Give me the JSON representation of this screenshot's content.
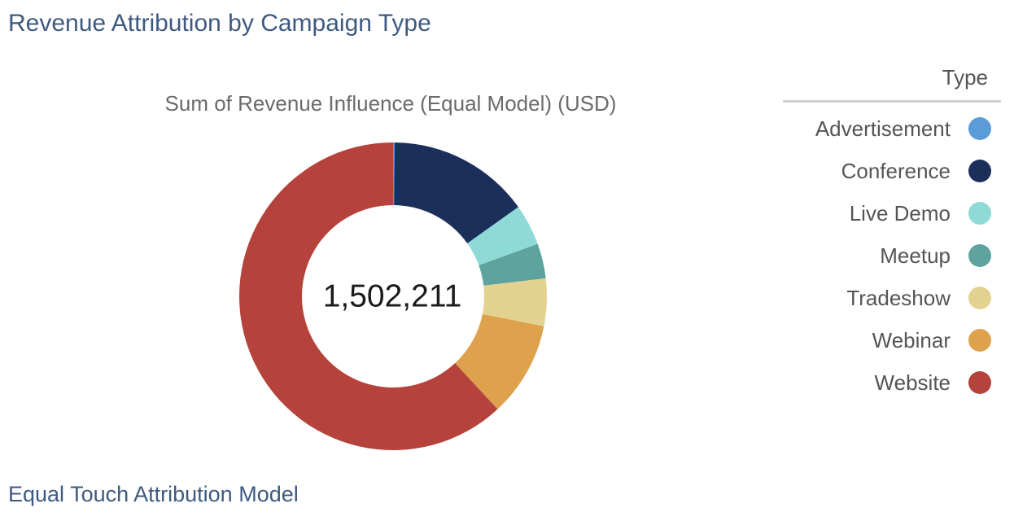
{
  "header": {
    "title": "Revenue Attribution by Campaign Type"
  },
  "footer": {
    "title": "Equal Touch Attribution Model"
  },
  "chart_data": {
    "type": "pie",
    "donut": true,
    "title": "Sum of Revenue Influence (Equal Model) (USD)",
    "center_label": "1,502,211",
    "total": 1502211,
    "legend": {
      "title": "Type",
      "position": "right"
    },
    "series": [
      {
        "name": "Advertisement",
        "value": 2500,
        "color": "#5a9bd8"
      },
      {
        "name": "Conference",
        "value": 225000,
        "color": "#1c2f5a"
      },
      {
        "name": "Live Demo",
        "value": 65000,
        "color": "#8ddad6"
      },
      {
        "name": "Meetup",
        "value": 55000,
        "color": "#5ea39d"
      },
      {
        "name": "Tradeshow",
        "value": 75000,
        "color": "#e3d28f"
      },
      {
        "name": "Webinar",
        "value": 150000,
        "color": "#dea14c"
      },
      {
        "name": "Website",
        "value": 929711,
        "color": "#b5433c"
      }
    ]
  }
}
